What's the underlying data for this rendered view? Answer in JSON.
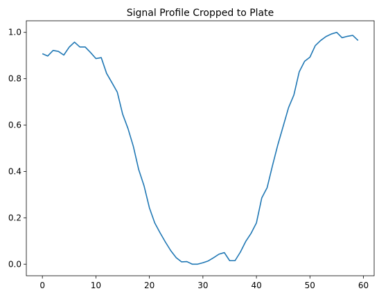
{
  "chart_data": {
    "type": "line",
    "title": "Signal Profile Cropped to Plate",
    "xlabel": "",
    "ylabel": "",
    "xlim": [
      -3,
      62
    ],
    "ylim": [
      -0.05,
      1.05
    ],
    "grid": false,
    "legend": "none",
    "x_ticks": [
      0,
      10,
      20,
      30,
      40,
      50,
      60
    ],
    "y_ticks": [
      0.0,
      0.2,
      0.4,
      0.6,
      0.8,
      1.0
    ],
    "x_tick_labels": [
      "0",
      "10",
      "20",
      "30",
      "40",
      "50",
      "60"
    ],
    "y_tick_labels": [
      "0.0",
      "0.2",
      "0.4",
      "0.6",
      "0.8",
      "1.0"
    ],
    "series_color": "#1f77b4",
    "x": [
      0,
      1,
      2,
      3,
      4,
      5,
      6,
      7,
      8,
      9,
      10,
      11,
      12,
      13,
      14,
      15,
      16,
      17,
      18,
      19,
      20,
      21,
      22,
      23,
      24,
      25,
      26,
      27,
      28,
      29,
      30,
      31,
      32,
      33,
      34,
      35,
      36,
      37,
      38,
      39,
      40,
      41,
      42,
      43,
      44,
      45,
      46,
      47,
      48,
      49,
      50,
      51,
      52,
      53,
      54,
      55,
      56,
      57,
      58,
      59
    ],
    "y": [
      0.908,
      0.898,
      0.922,
      0.918,
      0.902,
      0.936,
      0.958,
      0.937,
      0.937,
      0.913,
      0.887,
      0.891,
      0.823,
      0.783,
      0.742,
      0.647,
      0.585,
      0.508,
      0.408,
      0.338,
      0.243,
      0.178,
      0.135,
      0.095,
      0.058,
      0.028,
      0.01,
      0.011,
      0.0,
      0.0,
      0.006,
      0.014,
      0.028,
      0.043,
      0.05,
      0.015,
      0.015,
      0.052,
      0.098,
      0.133,
      0.178,
      0.286,
      0.33,
      0.425,
      0.515,
      0.595,
      0.675,
      0.73,
      0.83,
      0.875,
      0.893,
      0.943,
      0.965,
      0.982,
      0.993,
      1.0,
      0.977,
      0.983,
      0.987,
      0.965
    ]
  }
}
